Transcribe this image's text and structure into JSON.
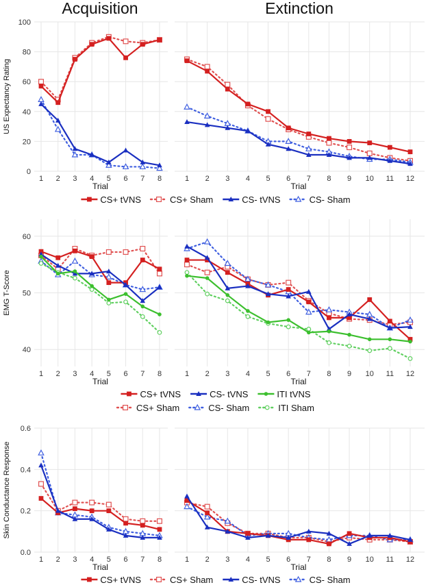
{
  "column_titles": [
    "Acquisition",
    "Extinction"
  ],
  "chart_data": [
    {
      "type": "line",
      "ylabel": "US Expectancy Rating",
      "xlabel": "Trial",
      "ylim": [
        0,
        100
      ],
      "yticks": [
        0,
        20,
        40,
        60,
        80,
        100
      ],
      "legend_rows": [
        [
          "cs_plus_tvns",
          "cs_plus_sham",
          "cs_minus_tvns",
          "cs_minus_sham"
        ]
      ],
      "panels": [
        {
          "name": "acquisition",
          "x": [
            1,
            2,
            3,
            4,
            5,
            6,
            7,
            8
          ],
          "series": [
            {
              "key": "cs_plus_tvns",
              "name": "CS+ tVNS",
              "color": "#d42020",
              "dashed": false,
              "marker": "square",
              "values": [
                57,
                46,
                75,
                85,
                89,
                76,
                85,
                88
              ]
            },
            {
              "key": "cs_plus_sham",
              "name": "CS+ Sham",
              "color": "#e05050",
              "dashed": true,
              "marker": "open-square",
              "values": [
                60,
                48,
                76,
                86,
                90,
                87,
                86,
                88
              ]
            },
            {
              "key": "cs_minus_tvns",
              "name": "CS- tVNS",
              "color": "#1a2fc0",
              "dashed": false,
              "marker": "triangle",
              "values": [
                45,
                34,
                15,
                11,
                6,
                14,
                6,
                4
              ]
            },
            {
              "key": "cs_minus_sham",
              "name": "CS- Sham",
              "color": "#3f5fe0",
              "dashed": true,
              "marker": "open-triangle",
              "values": [
                48,
                28,
                11,
                11,
                4,
                3,
                3,
                2
              ]
            }
          ]
        },
        {
          "name": "extinction",
          "x": [
            1,
            2,
            3,
            4,
            5,
            6,
            7,
            8,
            9,
            10,
            11,
            12
          ],
          "series": [
            {
              "key": "cs_plus_tvns",
              "name": "CS+ tVNS",
              "color": "#d42020",
              "dashed": false,
              "marker": "square",
              "values": [
                74,
                67,
                55,
                45,
                40,
                29,
                25,
                22,
                20,
                19,
                16,
                13
              ]
            },
            {
              "key": "cs_plus_sham",
              "name": "CS+ Sham",
              "color": "#e05050",
              "dashed": true,
              "marker": "open-square",
              "values": [
                75,
                70,
                58,
                44,
                35,
                28,
                23,
                19,
                16,
                12,
                9,
                7
              ]
            },
            {
              "key": "cs_minus_tvns",
              "name": "CS- tVNS",
              "color": "#1a2fc0",
              "dashed": false,
              "marker": "triangle",
              "values": [
                33,
                31,
                29,
                27,
                18,
                15,
                11,
                11,
                9,
                9,
                7,
                5
              ]
            },
            {
              "key": "cs_minus_sham",
              "name": "CS- Sham",
              "color": "#3f5fe0",
              "dashed": true,
              "marker": "open-triangle",
              "values": [
                43,
                37,
                32,
                27,
                20,
                20,
                15,
                13,
                10,
                8,
                8,
                6
              ]
            }
          ]
        }
      ]
    },
    {
      "type": "line",
      "ylabel": "EMG T-Score",
      "xlabel": "Trial",
      "ylim": [
        37,
        63
      ],
      "yticks": [
        40,
        50,
        60
      ],
      "legend_rows": [
        [
          "cs_plus_tvns",
          "cs_minus_tvns",
          "iti_tvns"
        ],
        [
          "cs_plus_sham",
          "cs_minus_sham",
          "iti_sham"
        ]
      ],
      "panels": [
        {
          "name": "acquisition",
          "x": [
            1,
            2,
            3,
            4,
            5,
            6,
            7,
            8
          ],
          "series": [
            {
              "key": "cs_plus_tvns",
              "name": "CS+ tVNS",
              "color": "#d42020",
              "dashed": false,
              "marker": "square",
              "values": [
                57.3,
                56.2,
                57.4,
                56.4,
                51.8,
                51.8,
                55.8,
                54.2
              ]
            },
            {
              "key": "cs_minus_tvns",
              "name": "CS- tVNS",
              "color": "#1a2fc0",
              "dashed": false,
              "marker": "triangle",
              "values": [
                56.8,
                54.8,
                53.4,
                53.4,
                53.8,
                51.4,
                48.6,
                51.0
              ]
            },
            {
              "key": "iti_tvns",
              "name": "ITI tVNS",
              "color": "#3cbf2e",
              "dashed": false,
              "marker": "circle",
              "values": [
                56.4,
                53.4,
                53.8,
                51.2,
                48.8,
                49.8,
                47.6,
                46.2
              ]
            },
            {
              "key": "cs_plus_sham",
              "name": "CS+ Sham",
              "color": "#e05050",
              "dashed": true,
              "marker": "open-square",
              "values": [
                56.6,
                54.2,
                57.8,
                56.6,
                57.2,
                57.2,
                57.8,
                53.4
              ]
            },
            {
              "key": "cs_minus_sham",
              "name": "CS- Sham",
              "color": "#3f5fe0",
              "dashed": true,
              "marker": "open-triangle",
              "values": [
                55.6,
                53.2,
                55.6,
                53.2,
                52.8,
                51.4,
                50.6,
                51.0
              ]
            },
            {
              "key": "iti_sham",
              "name": "ITI Sham",
              "color": "#5fcf5f",
              "dashed": true,
              "marker": "open-circle",
              "values": [
                55.2,
                53.6,
                52.6,
                50.6,
                48.2,
                48.4,
                45.8,
                43.0
              ]
            }
          ]
        },
        {
          "name": "extinction",
          "x": [
            1,
            2,
            3,
            4,
            5,
            6,
            7,
            8,
            9,
            10,
            11,
            12
          ],
          "series": [
            {
              "key": "cs_plus_tvns",
              "name": "CS+ tVNS",
              "color": "#d42020",
              "dashed": false,
              "marker": "square",
              "values": [
                55.8,
                55.8,
                53.6,
                51.6,
                49.6,
                50.6,
                48.4,
                45.6,
                45.6,
                48.8,
                45.0,
                41.8
              ]
            },
            {
              "key": "cs_minus_tvns",
              "name": "CS- tVNS",
              "color": "#1a2fc0",
              "dashed": false,
              "marker": "triangle",
              "values": [
                58.2,
                56.2,
                50.8,
                51.2,
                49.8,
                49.4,
                50.2,
                43.6,
                46.2,
                45.4,
                43.8,
                44.0
              ]
            },
            {
              "key": "iti_tvns",
              "name": "ITI tVNS",
              "color": "#3cbf2e",
              "dashed": false,
              "marker": "circle",
              "values": [
                53.0,
                52.6,
                49.6,
                46.8,
                44.8,
                45.2,
                43.0,
                43.2,
                42.6,
                41.8,
                41.8,
                41.4
              ]
            },
            {
              "key": "cs_plus_sham",
              "name": "CS+ Sham",
              "color": "#e05050",
              "dashed": true,
              "marker": "open-square",
              "values": [
                55.0,
                53.6,
                54.6,
                52.4,
                51.4,
                51.8,
                48.6,
                46.4,
                45.4,
                45.2,
                44.4,
                44.8
              ]
            },
            {
              "key": "cs_minus_sham",
              "name": "CS- Sham",
              "color": "#3f5fe0",
              "dashed": true,
              "marker": "open-triangle",
              "values": [
                57.8,
                59.0,
                55.2,
                52.4,
                51.4,
                50.2,
                46.6,
                47.0,
                46.6,
                46.2,
                43.8,
                45.2
              ]
            },
            {
              "key": "iti_sham",
              "name": "ITI Sham",
              "color": "#5fcf5f",
              "dashed": true,
              "marker": "open-circle",
              "values": [
                53.6,
                49.8,
                48.6,
                45.8,
                44.6,
                44.0,
                43.6,
                41.2,
                40.6,
                39.8,
                40.2,
                38.4
              ]
            }
          ]
        }
      ]
    },
    {
      "type": "line",
      "ylabel": "Skin Conductance Response",
      "xlabel": "Trial",
      "ylim": [
        0,
        0.6
      ],
      "yticks": [
        0.0,
        0.2,
        0.4,
        0.6
      ],
      "legend_rows": [
        [
          "cs_plus_tvns",
          "cs_plus_sham",
          "cs_minus_tvns",
          "cs_minus_sham"
        ]
      ],
      "panels": [
        {
          "name": "acquisition",
          "x": [
            1,
            2,
            3,
            4,
            5,
            6,
            7,
            8
          ],
          "series": [
            {
              "key": "cs_plus_tvns",
              "name": "CS+ tVNS",
              "color": "#d42020",
              "dashed": false,
              "marker": "square",
              "values": [
                0.26,
                0.19,
                0.21,
                0.2,
                0.2,
                0.14,
                0.13,
                0.11
              ]
            },
            {
              "key": "cs_plus_sham",
              "name": "CS+ Sham",
              "color": "#e05050",
              "dashed": true,
              "marker": "open-square",
              "values": [
                0.33,
                0.2,
                0.24,
                0.24,
                0.23,
                0.16,
                0.15,
                0.15
              ]
            },
            {
              "key": "cs_minus_tvns",
              "name": "CS- tVNS",
              "color": "#1a2fc0",
              "dashed": false,
              "marker": "triangle",
              "values": [
                0.42,
                0.2,
                0.16,
                0.16,
                0.11,
                0.08,
                0.07,
                0.07
              ]
            },
            {
              "key": "cs_minus_sham",
              "name": "CS- Sham",
              "color": "#3f5fe0",
              "dashed": true,
              "marker": "open-triangle",
              "values": [
                0.48,
                0.19,
                0.18,
                0.17,
                0.12,
                0.1,
                0.09,
                0.08
              ]
            }
          ]
        },
        {
          "name": "extinction",
          "x": [
            1,
            2,
            3,
            4,
            5,
            6,
            7,
            8,
            9,
            10,
            11,
            12
          ],
          "series": [
            {
              "key": "cs_plus_tvns",
              "name": "CS+ tVNS",
              "color": "#d42020",
              "dashed": false,
              "marker": "square",
              "values": [
                0.25,
                0.19,
                0.1,
                0.09,
                0.08,
                0.06,
                0.06,
                0.04,
                0.09,
                0.07,
                0.07,
                0.05
              ]
            },
            {
              "key": "cs_plus_sham",
              "name": "CS+ Sham",
              "color": "#e05050",
              "dashed": true,
              "marker": "open-square",
              "values": [
                0.24,
                0.22,
                0.14,
                0.09,
                0.09,
                0.07,
                0.07,
                0.05,
                0.07,
                0.06,
                0.06,
                0.05
              ]
            },
            {
              "key": "cs_minus_tvns",
              "name": "CS- tVNS",
              "color": "#1a2fc0",
              "dashed": false,
              "marker": "triangle",
              "values": [
                0.27,
                0.12,
                0.1,
                0.07,
                0.08,
                0.07,
                0.1,
                0.09,
                0.04,
                0.08,
                0.08,
                0.06
              ]
            },
            {
              "key": "cs_minus_sham",
              "name": "CS- Sham",
              "color": "#3f5fe0",
              "dashed": true,
              "marker": "open-triangle",
              "values": [
                0.22,
                0.17,
                0.15,
                0.08,
                0.09,
                0.09,
                0.07,
                0.06,
                0.08,
                0.08,
                0.06,
                0.06
              ]
            }
          ]
        }
      ]
    }
  ]
}
